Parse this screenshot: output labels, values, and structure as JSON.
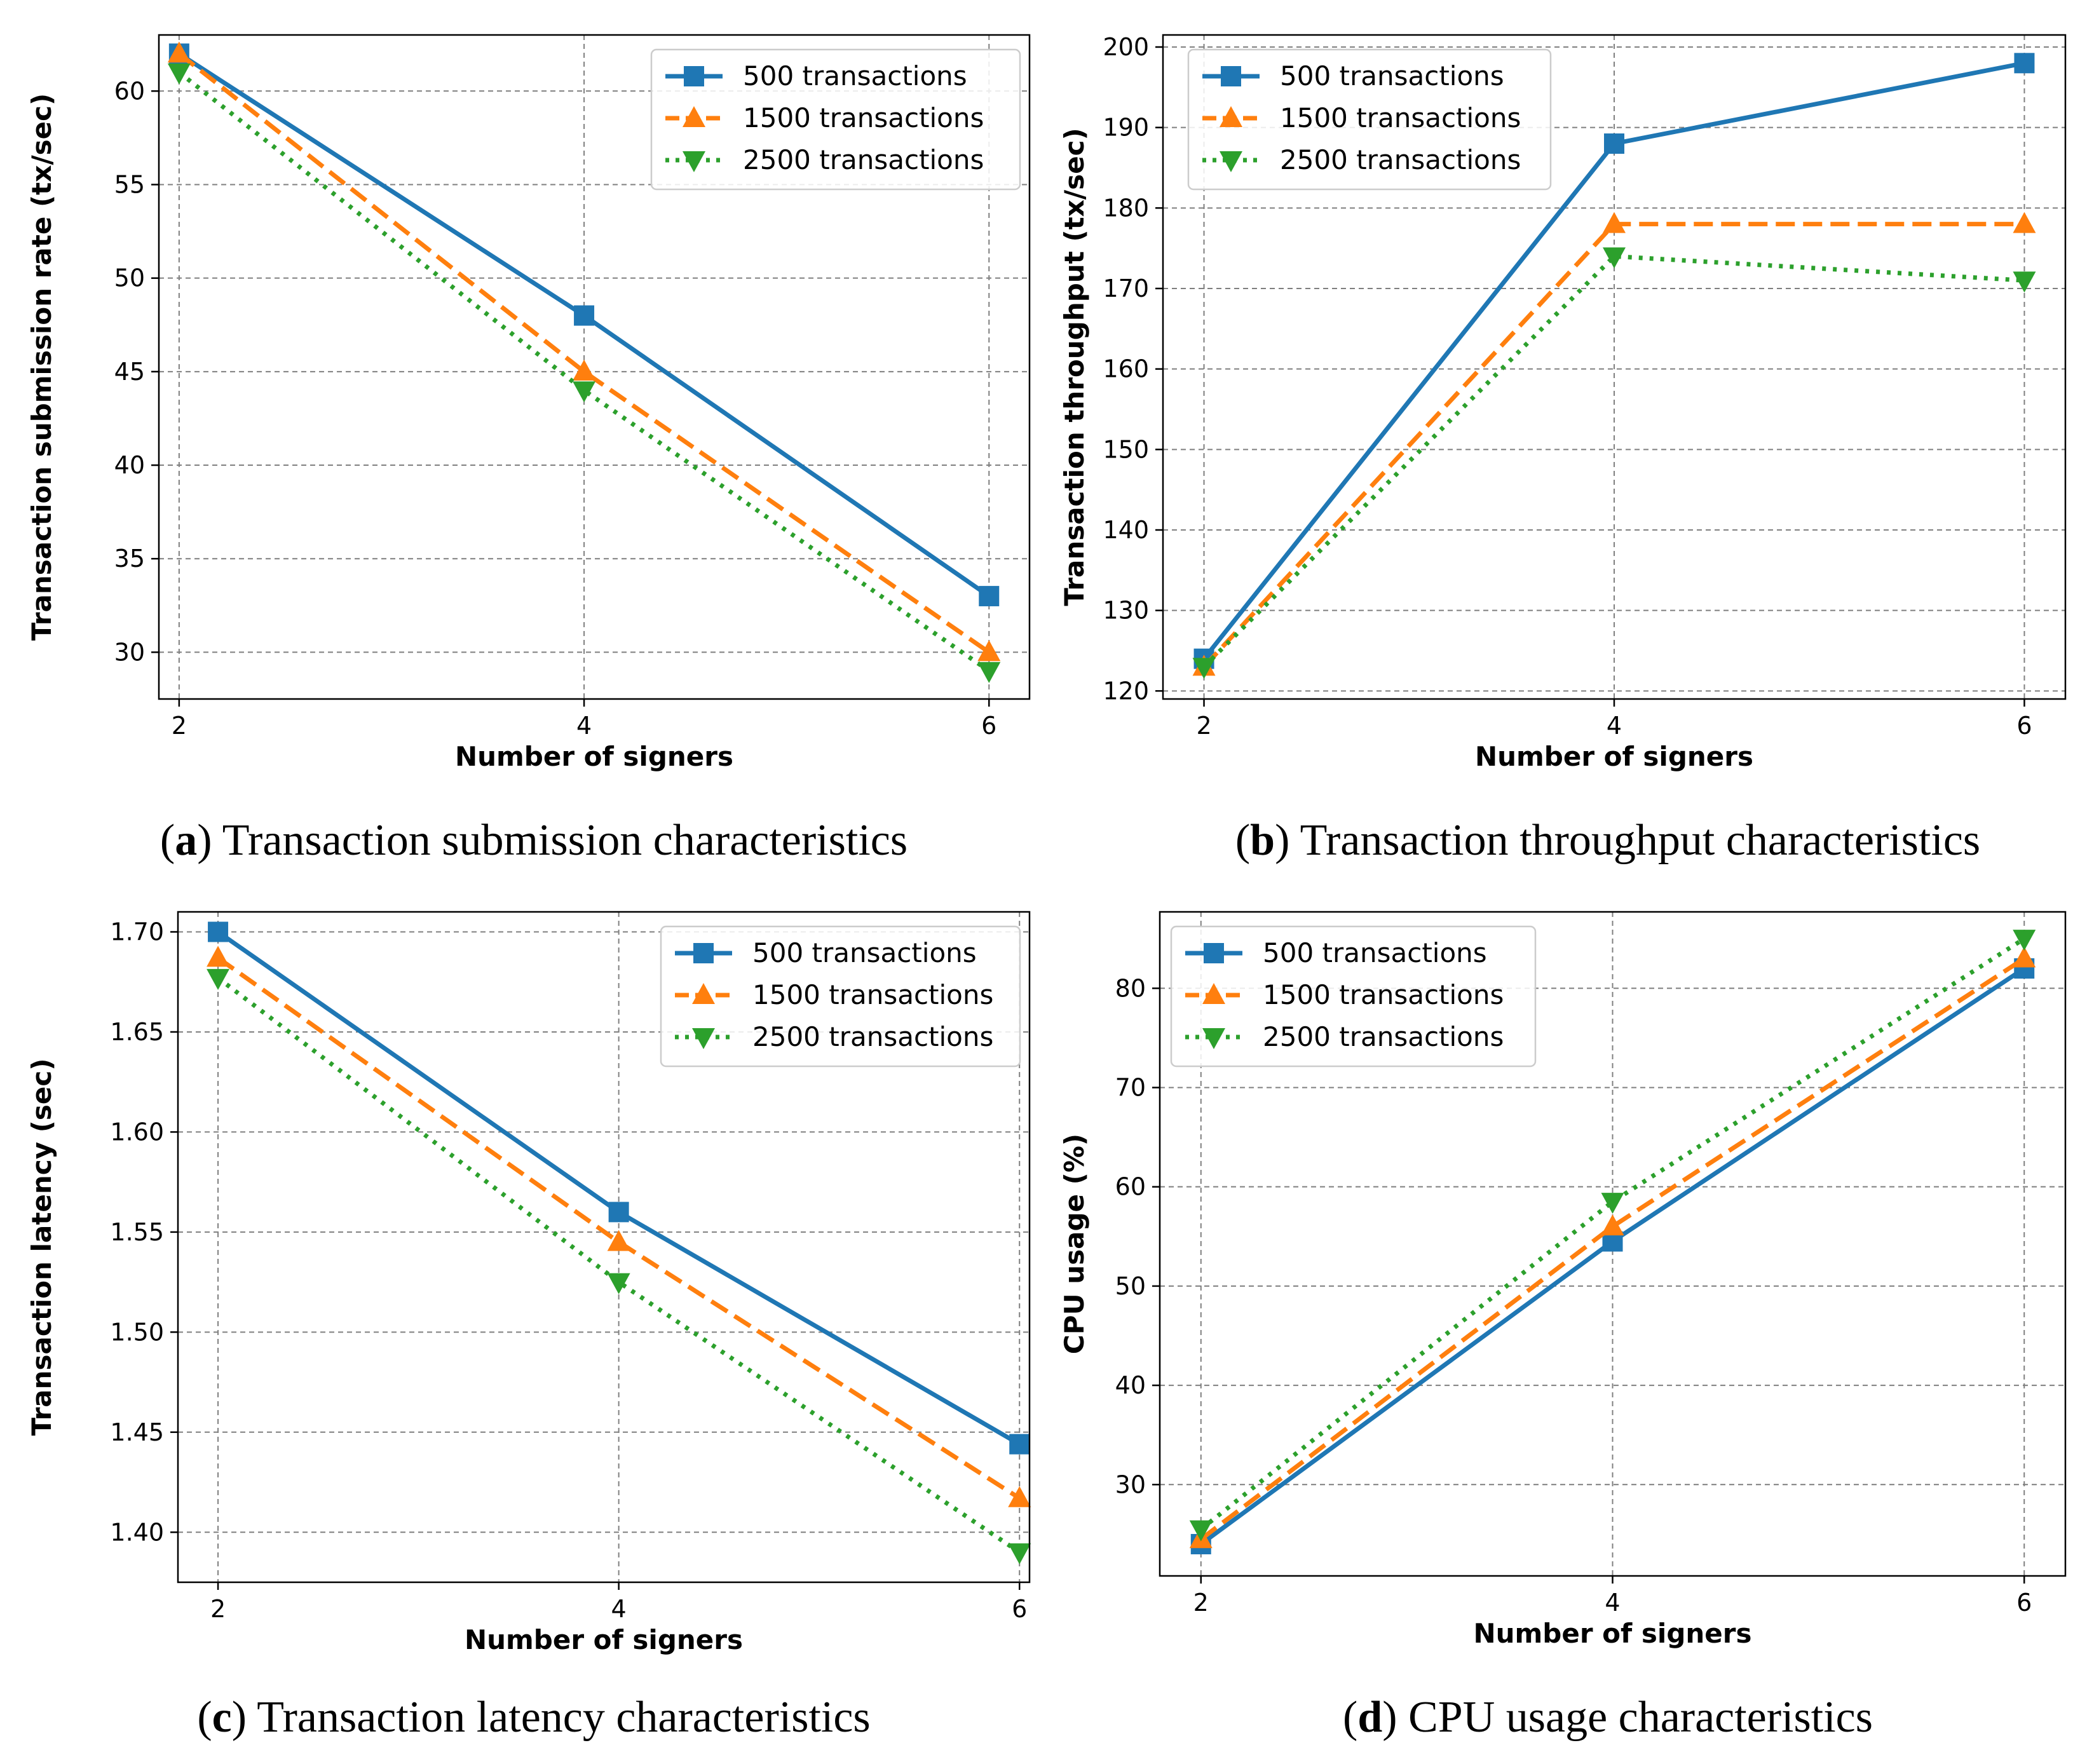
{
  "colors": {
    "s500": "#1f77b4",
    "s1500": "#ff7f0e",
    "s2500": "#2ca02c",
    "grid": "#7f7f7f"
  },
  "chart_data": [
    {
      "type": "line",
      "caption_label": "a",
      "caption_text": "Transaction submission characteristics",
      "xlabel": "Number of signers",
      "ylabel": "Transaction submission rate (tx/sec)",
      "x": [
        2,
        4,
        6
      ],
      "xticks": [
        2,
        4,
        6
      ],
      "yticks": [
        30,
        35,
        40,
        45,
        50,
        55,
        60
      ],
      "xlim": [
        1.9,
        6.2
      ],
      "ylim": [
        27.5,
        63.0
      ],
      "legend_loc": "upper right",
      "series": [
        {
          "name": "500 transactions",
          "values": [
            62,
            48,
            33
          ]
        },
        {
          "name": "1500 transactions",
          "values": [
            62,
            45,
            30
          ]
        },
        {
          "name": "2500 transactions",
          "values": [
            61,
            44,
            29
          ]
        }
      ]
    },
    {
      "type": "line",
      "caption_label": "b",
      "caption_text": "Transaction throughput characteristics",
      "xlabel": "Number of signers",
      "ylabel": "Transaction throughput (tx/sec)",
      "x": [
        2,
        4,
        6
      ],
      "xticks": [
        2,
        4,
        6
      ],
      "yticks": [
        120,
        130,
        140,
        150,
        160,
        170,
        180,
        190,
        200
      ],
      "xlim": [
        1.8,
        6.2
      ],
      "ylim": [
        119.0,
        201.5
      ],
      "legend_loc": "upper left",
      "series": [
        {
          "name": "500 transactions",
          "values": [
            124,
            188,
            198
          ]
        },
        {
          "name": "1500 transactions",
          "values": [
            123,
            178,
            178
          ]
        },
        {
          "name": "2500 transactions",
          "values": [
            123,
            174,
            171
          ]
        }
      ]
    },
    {
      "type": "line",
      "caption_label": "c",
      "caption_text": "Transaction latency characteristics",
      "xlabel": "Number of signers",
      "ylabel": "Transaction latency (sec)",
      "x": [
        2,
        4,
        6
      ],
      "xticks": [
        2,
        4,
        6
      ],
      "yticks": [
        "1.40",
        "1.45",
        "1.50",
        "1.55",
        "1.60",
        "1.65",
        "1.70"
      ],
      "xlim": [
        1.8,
        6.05
      ],
      "ylim": [
        1.375,
        1.71
      ],
      "legend_loc": "upper right",
      "series": [
        {
          "name": "500 transactions",
          "values": [
            1.7,
            1.56,
            1.444
          ]
        },
        {
          "name": "1500 transactions",
          "values": [
            1.687,
            1.545,
            1.417
          ]
        },
        {
          "name": "2500 transactions",
          "values": [
            1.677,
            1.525,
            1.39
          ]
        }
      ]
    },
    {
      "type": "line",
      "caption_label": "d",
      "caption_text": "CPU usage characteristics",
      "xlabel": "Number of signers",
      "ylabel": "CPU usage (%)",
      "x": [
        2,
        4,
        6
      ],
      "xticks": [
        2,
        4,
        6
      ],
      "yticks": [
        30,
        40,
        50,
        60,
        70,
        80
      ],
      "xlim": [
        1.8,
        6.2
      ],
      "ylim": [
        20.8,
        87.7
      ],
      "legend_loc": "upper left",
      "series": [
        {
          "name": "500 transactions",
          "values": [
            24,
            54.5,
            82
          ]
        },
        {
          "name": "1500 transactions",
          "values": [
            24.5,
            56,
            83
          ]
        },
        {
          "name": "2500 transactions",
          "values": [
            25.5,
            58.5,
            85
          ]
        }
      ]
    }
  ]
}
